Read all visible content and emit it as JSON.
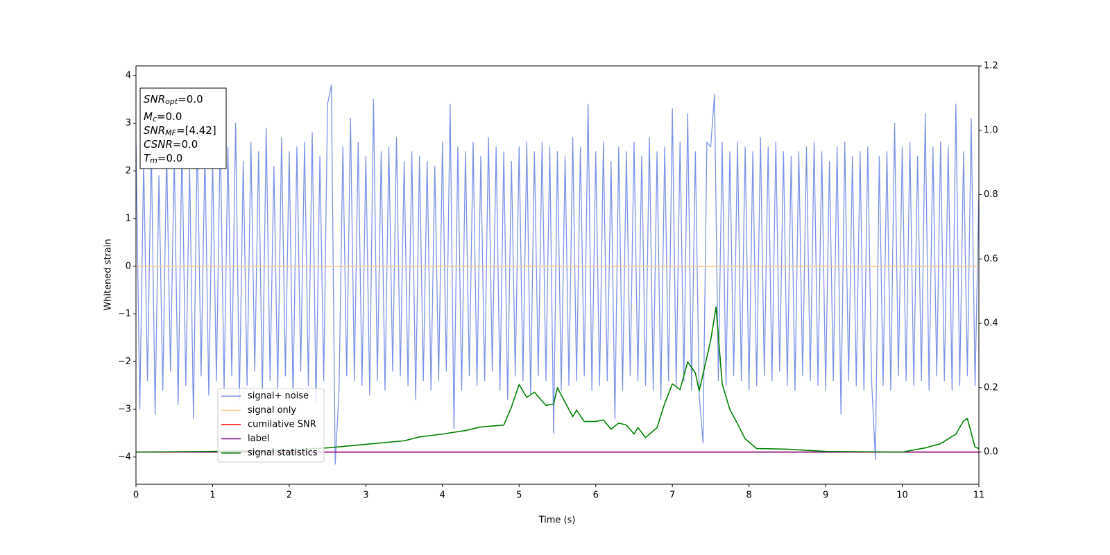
{
  "chart_data": {
    "type": "line",
    "xlabel": "Time (s)",
    "ylabel": "Whitened strain",
    "xlim": [
      0,
      11
    ],
    "xticks": [
      0,
      1,
      2,
      3,
      4,
      5,
      6,
      7,
      8,
      9,
      10,
      11
    ],
    "ylim": [
      -4.57,
      4.2
    ],
    "yticks": [
      {
        "value": -4,
        "label": "−4"
      },
      {
        "value": -3,
        "label": "−3"
      },
      {
        "value": -2,
        "label": "−2"
      },
      {
        "value": -1,
        "label": "−1"
      },
      0,
      1,
      2,
      3,
      4
    ],
    "y2lim": [
      -0.1,
      1.2
    ],
    "y2ticks": [
      {
        "value": 0,
        "label": "0.0"
      },
      {
        "value": 0.2,
        "label": "0.2"
      },
      {
        "value": 0.4,
        "label": "0.4"
      },
      {
        "value": 0.6,
        "label": "0.6"
      },
      {
        "value": 0.8,
        "label": "0.8"
      },
      {
        "value": 1.0,
        "label": "1.0"
      },
      {
        "value": 1.2,
        "label": "1.2"
      }
    ],
    "legend_loc": "lower left",
    "annotations": [
      {
        "symbol": "SNR",
        "subscript": "opt",
        "text": "=0.0"
      },
      {
        "symbol": "M",
        "subscript": "c",
        "text": "=0.0"
      },
      {
        "symbol": "SNR",
        "subscript": "MF",
        "text": "=[4.42]"
      },
      {
        "symbol": "CSNR",
        "subscript": "",
        "text": "=0.0"
      },
      {
        "symbol": "T",
        "subscript": "m",
        "text": "=0.0"
      }
    ],
    "series": [
      {
        "name": "signal+ noise",
        "color": "#7b93e8",
        "x": [
          0,
          0.05,
          0.1,
          0.15,
          0.2,
          0.25,
          0.3,
          0.35,
          0.4,
          0.45,
          0.5,
          0.55,
          0.6,
          0.65,
          0.7,
          0.75,
          0.8,
          0.85,
          0.9,
          0.95,
          1,
          1.05,
          1.1,
          1.15,
          1.2,
          1.25,
          1.3,
          1.35,
          1.4,
          1.45,
          1.5,
          1.55,
          1.6,
          1.65,
          1.7,
          1.75,
          1.8,
          1.85,
          1.9,
          1.95,
          2,
          2.05,
          2.1,
          2.15,
          2.2,
          2.25,
          2.3,
          2.35,
          2.4,
          2.45,
          2.5,
          2.55,
          2.6,
          2.65,
          2.7,
          2.75,
          2.8,
          2.85,
          2.9,
          2.95,
          3,
          3.05,
          3.1,
          3.15,
          3.2,
          3.25,
          3.3,
          3.35,
          3.4,
          3.45,
          3.5,
          3.55,
          3.6,
          3.65,
          3.7,
          3.75,
          3.8,
          3.85,
          3.9,
          3.95,
          4,
          4.05,
          4.1,
          4.15,
          4.2,
          4.25,
          4.3,
          4.35,
          4.4,
          4.45,
          4.5,
          4.55,
          4.6,
          4.65,
          4.7,
          4.75,
          4.8,
          4.85,
          4.9,
          4.95,
          5,
          5.05,
          5.1,
          5.15,
          5.2,
          5.25,
          5.3,
          5.35,
          5.4,
          5.45,
          5.5,
          5.55,
          5.6,
          5.65,
          5.7,
          5.75,
          5.8,
          5.85,
          5.9,
          5.95,
          6,
          6.05,
          6.1,
          6.15,
          6.2,
          6.25,
          6.3,
          6.35,
          6.4,
          6.45,
          6.5,
          6.55,
          6.6,
          6.65,
          6.7,
          6.75,
          6.8,
          6.85,
          6.9,
          6.95,
          7,
          7.05,
          7.1,
          7.15,
          7.2,
          7.25,
          7.3,
          7.35,
          7.4,
          7.45,
          7.5,
          7.55,
          7.6,
          7.65,
          7.7,
          7.75,
          7.8,
          7.85,
          7.9,
          7.95,
          8,
          8.05,
          8.1,
          8.15,
          8.2,
          8.25,
          8.3,
          8.35,
          8.4,
          8.45,
          8.5,
          8.55,
          8.6,
          8.65,
          8.7,
          8.75,
          8.8,
          8.85,
          8.9,
          8.95,
          9,
          9.05,
          9.1,
          9.15,
          9.2,
          9.25,
          9.3,
          9.35,
          9.4,
          9.45,
          9.5,
          9.55,
          9.6,
          9.65,
          9.7,
          9.75,
          9.8,
          9.85,
          9.9,
          9.95,
          10,
          10.05,
          10.1,
          10.15,
          10.2,
          10.25,
          10.3,
          10.35,
          10.4,
          10.45,
          10.5,
          10.55,
          10.6,
          10.65,
          10.7,
          10.75,
          10.8,
          10.85,
          10.9,
          10.95,
          11
        ],
        "values": [
          2.6,
          -3.0,
          2.2,
          -2.4,
          2.5,
          -3.1,
          1.9,
          -2.6,
          2.4,
          -2.2,
          2.3,
          -2.9,
          2.6,
          -2.5,
          2.1,
          -3.2,
          2.7,
          -2.3,
          2.4,
          -2.7,
          2.2,
          -2.4,
          2.8,
          -2.6,
          2.5,
          -2.3,
          3.0,
          -2.8,
          2.2,
          -2.5,
          2.6,
          -2.2,
          2.4,
          -2.7,
          2.9,
          -2.4,
          2.1,
          -2.6,
          2.7,
          -2.3,
          2.4,
          -2.8,
          2.5,
          -2.2,
          2.6,
          -2.5,
          2.8,
          -2.9,
          2.3,
          -2.4,
          3.4,
          3.8,
          -4.15,
          -2.6,
          2.5,
          -2.3,
          3.1,
          -2.4,
          2.6,
          -2.5,
          2.3,
          -2.7,
          3.5,
          -2.4,
          2.4,
          -2.6,
          2.5,
          -2.2,
          2.7,
          -2.3,
          2.2,
          -2.5,
          2.4,
          -2.8,
          2.3,
          -2.4,
          2.2,
          -2.6,
          2.1,
          -2.4,
          2.6,
          -2.2,
          3.4,
          -3.4,
          2.5,
          -2.6,
          2.4,
          -2.3,
          2.6,
          -2.5,
          2.3,
          -2.4,
          2.7,
          -2.2,
          2.5,
          -2.6,
          2.4,
          -2.8,
          2.2,
          -2.3,
          2.5,
          -2.4,
          2.6,
          -2.7,
          2.4,
          -2.3,
          2.6,
          -2.4,
          2.5,
          -3.5,
          2.4,
          -2.6,
          2.3,
          -2.5,
          2.7,
          -2.4,
          2.5,
          -2.3,
          3.4,
          -2.6,
          2.4,
          -2.5,
          2.6,
          -2.4,
          2.2,
          -3.2,
          2.5,
          -2.6,
          2.4,
          -2.3,
          2.6,
          -2.4,
          2.3,
          -2.5,
          2.7,
          -2.6,
          2.4,
          -2.8,
          2.5,
          -2.4,
          3.3,
          -2.5,
          2.6,
          -2.4,
          3.2,
          -2.6,
          2.4,
          -2.7,
          -3.7,
          2.6,
          2.5,
          3.6,
          -2.4,
          2.6,
          -2.5,
          2.4,
          -2.3,
          2.6,
          -2.4,
          2.5,
          -2.6,
          2.4,
          -2.5,
          2.7,
          -2.3,
          2.5,
          -2.4,
          2.6,
          -2.2,
          2.4,
          -2.5,
          2.3,
          -2.6,
          2.4,
          -2.3,
          2.5,
          -2.4,
          2.6,
          -2.5,
          2.4,
          -2.6,
          2.2,
          -2.4,
          2.5,
          -3.1,
          2.6,
          -2.4,
          2.3,
          -2.5,
          2.4,
          -2.6,
          2.5,
          -2.4,
          -4.05,
          2.3,
          -2.5,
          2.4,
          -2.6,
          3.0,
          -2.3,
          2.5,
          -2.4,
          2.6,
          -2.5,
          2.3,
          -2.4,
          3.2,
          -2.6,
          2.5,
          -2.3,
          2.6,
          -2.4,
          2.5,
          -2.6,
          3.4,
          -2.5,
          2.4,
          -2.3,
          3.1,
          -2.5,
          1.5
        ]
      },
      {
        "name": "signal only",
        "color": "#f5c98a",
        "x": [
          0,
          11
        ],
        "values": [
          0,
          0
        ]
      },
      {
        "name": "cumilative SNR",
        "color": "#ff0000",
        "axis": "y2",
        "x": [
          0,
          11
        ],
        "values": [
          0,
          0
        ]
      },
      {
        "name": "label",
        "color": "#800080",
        "axis": "y2",
        "x": [
          0,
          11
        ],
        "values": [
          0,
          0
        ]
      },
      {
        "name": "signal statistics",
        "color": "#008000",
        "axis": "y2",
        "x": [
          0,
          1,
          2,
          2.5,
          3,
          3.5,
          3.7,
          4,
          4.3,
          4.5,
          4.8,
          4.9,
          5.0,
          5.1,
          5.2,
          5.35,
          5.45,
          5.5,
          5.7,
          5.75,
          5.85,
          6.0,
          6.1,
          6.2,
          6.3,
          6.4,
          6.5,
          6.55,
          6.65,
          6.8,
          6.9,
          7.0,
          7.1,
          7.2,
          7.3,
          7.35,
          7.5,
          7.57,
          7.65,
          7.75,
          7.85,
          7.95,
          8.1,
          8.5,
          9,
          10,
          10.3,
          10.5,
          10.7,
          10.8,
          10.85,
          10.95,
          11
        ],
        "values": [
          0,
          0.002,
          0.006,
          0.013,
          0.024,
          0.035,
          0.047,
          0.056,
          0.067,
          0.078,
          0.084,
          0.14,
          0.21,
          0.17,
          0.186,
          0.145,
          0.149,
          0.2,
          0.11,
          0.13,
          0.095,
          0.095,
          0.1,
          0.071,
          0.09,
          0.084,
          0.056,
          0.076,
          0.045,
          0.076,
          0.151,
          0.212,
          0.194,
          0.28,
          0.246,
          0.19,
          0.347,
          0.451,
          0.212,
          0.132,
          0.088,
          0.041,
          0.011,
          0.009,
          0.002,
          0,
          0.013,
          0.026,
          0.056,
          0.097,
          0.104,
          0.015,
          0.011
        ]
      }
    ]
  }
}
